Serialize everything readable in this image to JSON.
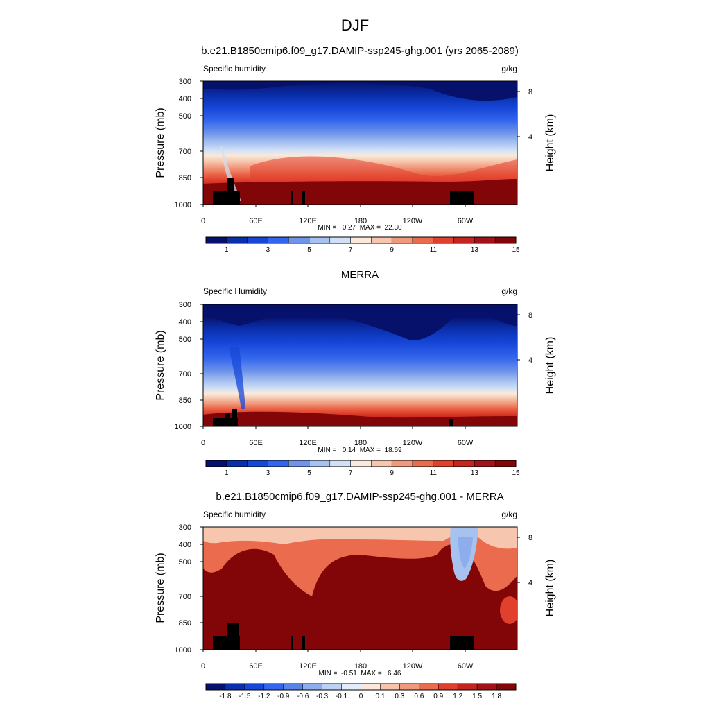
{
  "figure": {
    "title": "DJF"
  },
  "colorbars": {
    "abs": {
      "labels": [
        "1",
        "3",
        "5",
        "7",
        "9",
        "11",
        "13",
        "15"
      ],
      "colors": [
        "#06116b",
        "#0a2fad",
        "#1747d9",
        "#3366ee",
        "#6f95ea",
        "#a8c2f0",
        "#d0e0f7",
        "#fbeadb",
        "#f6c7ae",
        "#f09a7d",
        "#eb6b4e",
        "#e1402d",
        "#c5241f",
        "#a31218",
        "#820608"
      ]
    },
    "diff": {
      "labels": [
        "-1.8",
        "-1.5",
        "-1.2",
        "-0.9",
        "-0.6",
        "-0.3",
        "-0.1",
        "0",
        "0.1",
        "0.3",
        "0.6",
        "0.9",
        "1.2",
        "1.5",
        "1.8"
      ],
      "colors": [
        "#06116b",
        "#0a2fad",
        "#1747d9",
        "#3366ee",
        "#5a83e8",
        "#8eadec",
        "#bcd1f3",
        "#e3ecfa",
        "#fde7dc",
        "#f7c3aa",
        "#f09a7d",
        "#eb6b4e",
        "#e1402d",
        "#c5241f",
        "#a31218",
        "#820608"
      ]
    }
  },
  "chart_data": [
    {
      "type": "heatmap",
      "title": "b.e21.B1850cmip6.f09_g17.DAMIP-ssp245-ghg.001 (yrs 2065-2089)",
      "left_label": "Specific humidity",
      "units": "g/kg",
      "ylabel": "Pressure (mb)",
      "ylabel_right": "Height (km)",
      "x_ticks": [
        "0",
        "60E",
        "120E",
        "180",
        "120W",
        "60W"
      ],
      "y_ticks": [
        "300",
        "400",
        "500",
        "700",
        "850",
        "1000"
      ],
      "height_ticks": [
        "8",
        "4"
      ],
      "min_max": "MIN =   0.27  MAX =  22.30",
      "colorbar": "abs"
    },
    {
      "type": "heatmap",
      "title": "MERRA",
      "left_label": "Specific Humidity",
      "units": "g/kg",
      "ylabel": "Pressure (mb)",
      "ylabel_right": "Height (km)",
      "x_ticks": [
        "0",
        "60E",
        "120E",
        "180",
        "120W",
        "60W"
      ],
      "y_ticks": [
        "300",
        "400",
        "500",
        "700",
        "850",
        "1000"
      ],
      "height_ticks": [
        "8",
        "4"
      ],
      "min_max": "MIN =   0.14  MAX =  18.69",
      "colorbar": "abs"
    },
    {
      "type": "heatmap",
      "title": "b.e21.B1850cmip6.f09_g17.DAMIP-ssp245-ghg.001 - MERRA",
      "left_label": "Specific humidity",
      "units": "g/kg",
      "ylabel": "Pressure (mb)",
      "ylabel_right": "Height (km)",
      "x_ticks": [
        "0",
        "60E",
        "120E",
        "180",
        "120W",
        "60W"
      ],
      "y_ticks": [
        "300",
        "400",
        "500",
        "700",
        "850",
        "1000"
      ],
      "height_ticks": [
        "8",
        "4"
      ],
      "min_max": "MIN =  -0.51  MAX =   6.46",
      "colorbar": "diff"
    }
  ]
}
